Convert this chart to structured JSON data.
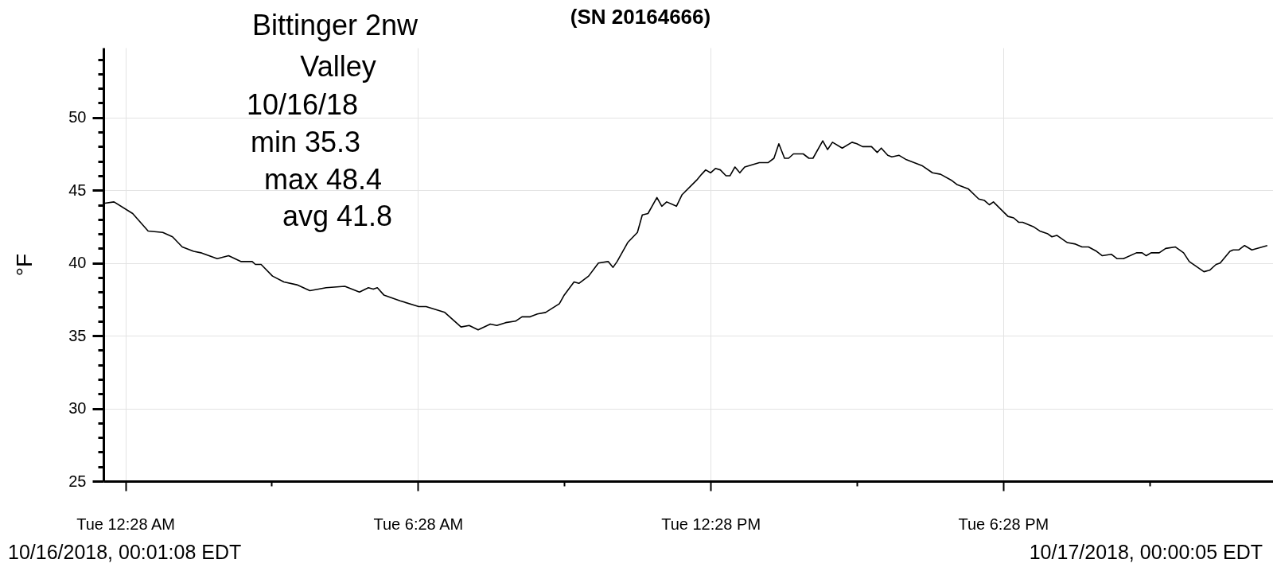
{
  "chart_data": {
    "type": "line",
    "title": "(SN 20164666)",
    "ylabel": "°F",
    "annotations": [
      "Bittinger 2nw",
      "Valley",
      "10/16/18",
      "min 35.3",
      "max 48.4",
      "avg 41.8",
      "10/16/2018, 00:01:08 EDT",
      "10/17/2018, 00:00:05 EDT"
    ],
    "x": [
      "2018-10-16T00:01",
      "2018-10-16T00:14",
      "2018-10-16T00:37",
      "2018-10-16T00:56",
      "2018-10-16T01:14",
      "2018-10-16T01:26",
      "2018-10-16T01:38",
      "2018-10-16T01:52",
      "2018-10-16T02:01",
      "2018-10-16T02:21",
      "2018-10-16T02:35",
      "2018-10-16T02:50",
      "2018-10-16T03:04",
      "2018-10-16T03:08",
      "2018-10-16T03:15",
      "2018-10-16T03:29",
      "2018-10-16T03:43",
      "2018-10-16T03:59",
      "2018-10-16T04:15",
      "2018-10-16T04:35",
      "2018-10-16T04:58",
      "2018-10-16T05:16",
      "2018-10-16T05:27",
      "2018-10-16T05:33",
      "2018-10-16T05:38",
      "2018-10-16T05:46",
      "2018-10-16T06:06",
      "2018-10-16T06:29",
      "2018-10-16T06:38",
      "2018-10-16T07:01",
      "2018-10-16T07:21",
      "2018-10-16T07:31",
      "2018-10-16T07:42",
      "2018-10-16T07:57",
      "2018-10-16T08:05",
      "2018-10-16T08:16",
      "2018-10-16T08:28",
      "2018-10-16T08:36",
      "2018-10-16T08:46",
      "2018-10-16T08:55",
      "2018-10-16T09:05",
      "2018-10-16T09:22",
      "2018-10-16T09:28",
      "2018-10-16T09:40",
      "2018-10-16T09:46",
      "2018-10-16T09:58",
      "2018-10-16T10:10",
      "2018-10-16T10:22",
      "2018-10-16T10:28",
      "2018-10-16T10:33",
      "2018-10-16T10:46",
      "2018-10-16T10:58",
      "2018-10-16T11:04",
      "2018-10-16T11:11",
      "2018-10-16T11:22",
      "2018-10-16T11:28",
      "2018-10-16T11:34",
      "2018-10-16T11:46",
      "2018-10-16T11:53",
      "2018-10-16T12:11",
      "2018-10-16T12:17",
      "2018-10-16T12:22",
      "2018-10-16T12:28",
      "2018-10-16T12:34",
      "2018-10-16T12:40",
      "2018-10-16T12:47",
      "2018-10-16T12:52",
      "2018-10-16T12:58",
      "2018-10-16T13:04",
      "2018-10-16T13:10",
      "2018-10-16T13:28",
      "2018-10-16T13:39",
      "2018-10-16T13:46",
      "2018-10-16T13:52",
      "2018-10-16T13:59",
      "2018-10-16T14:04",
      "2018-10-16T14:10",
      "2018-10-16T14:22",
      "2018-10-16T14:29",
      "2018-10-16T14:34",
      "2018-10-16T14:46",
      "2018-10-16T14:52",
      "2018-10-16T14:58",
      "2018-10-16T15:10",
      "2018-10-16T15:22",
      "2018-10-16T15:28",
      "2018-10-16T15:35",
      "2018-10-16T15:46",
      "2018-10-16T15:53",
      "2018-10-16T15:58",
      "2018-10-16T16:06",
      "2018-10-16T16:11",
      "2018-10-16T16:20",
      "2018-10-16T16:29",
      "2018-10-16T16:48",
      "2018-10-16T17:01",
      "2018-10-16T17:11",
      "2018-10-16T17:24",
      "2018-10-16T17:31",
      "2018-10-16T17:45",
      "2018-10-16T17:58",
      "2018-10-16T18:05",
      "2018-10-16T18:11",
      "2018-10-16T18:16",
      "2018-10-16T18:34",
      "2018-10-16T18:41",
      "2018-10-16T18:47",
      "2018-10-16T18:52",
      "2018-10-16T19:05",
      "2018-10-16T19:13",
      "2018-10-16T19:23",
      "2018-10-16T19:28",
      "2018-10-16T19:34",
      "2018-10-16T19:47",
      "2018-10-16T19:57",
      "2018-10-16T20:05",
      "2018-10-16T20:13",
      "2018-10-16T20:23",
      "2018-10-16T20:30",
      "2018-10-16T20:41",
      "2018-10-16T20:48",
      "2018-10-16T20:56",
      "2018-10-16T21:12",
      "2018-10-16T21:19",
      "2018-10-16T21:24",
      "2018-10-16T21:30",
      "2018-10-16T21:40",
      "2018-10-16T21:48",
      "2018-10-16T22:00",
      "2018-10-16T22:10",
      "2018-10-16T22:17",
      "2018-10-16T22:35",
      "2018-10-16T22:42",
      "2018-10-16T22:50",
      "2018-10-16T22:55",
      "2018-10-16T23:07",
      "2018-10-16T23:11",
      "2018-10-16T23:18",
      "2018-10-16T23:25",
      "2018-10-16T23:34",
      "2018-10-16T23:53"
    ],
    "series": [
      {
        "color": "#000000",
        "values": [
          44.1,
          44.2,
          43.4,
          42.2,
          42.1,
          41.8,
          41.1,
          40.8,
          40.7,
          40.3,
          40.5,
          40.1,
          40.1,
          39.9,
          39.9,
          39.1,
          38.7,
          38.5,
          38.1,
          38.3,
          38.4,
          38.0,
          38.3,
          38.2,
          38.3,
          37.8,
          37.4,
          37.0,
          37.0,
          36.6,
          35.6,
          35.7,
          35.4,
          35.8,
          35.7,
          35.9,
          36.0,
          36.3,
          36.3,
          36.5,
          36.6,
          37.2,
          37.8,
          38.7,
          38.6,
          39.1,
          40.0,
          40.1,
          39.7,
          40.1,
          41.4,
          42.1,
          43.3,
          43.4,
          44.5,
          43.9,
          44.2,
          43.9,
          44.7,
          45.7,
          46.1,
          46.4,
          46.2,
          46.5,
          46.4,
          46.0,
          46.0,
          46.6,
          46.2,
          46.6,
          46.9,
          46.9,
          47.2,
          48.2,
          47.2,
          47.2,
          47.5,
          47.5,
          47.2,
          47.2,
          48.4,
          47.8,
          48.3,
          47.9,
          48.3,
          48.2,
          48.0,
          48.0,
          47.6,
          47.9,
          47.4,
          47.3,
          47.4,
          47.1,
          46.7,
          46.2,
          46.1,
          45.7,
          45.4,
          45.1,
          44.4,
          44.3,
          44.0,
          44.2,
          43.2,
          43.1,
          42.8,
          42.8,
          42.5,
          42.2,
          42.0,
          41.8,
          41.9,
          41.4,
          41.3,
          41.1,
          41.1,
          40.8,
          40.5,
          40.6,
          40.3,
          40.3,
          40.7,
          40.7,
          40.5,
          40.7,
          40.7,
          41.0,
          41.1,
          40.7,
          40.1,
          39.4,
          39.5,
          39.9,
          40.0,
          40.8,
          40.9,
          40.9,
          41.2,
          40.9,
          41.2
        ]
      }
    ],
    "xlim": [
      "2018-10-16T00:01",
      "2018-10-17T00:00"
    ],
    "xticks": [
      {
        "value": "2018-10-16T00:28",
        "label": "Tue 12:28 AM"
      },
      {
        "value": "2018-10-16T03:28",
        "label": null
      },
      {
        "value": "2018-10-16T06:28",
        "label": "Tue 6:28 AM"
      },
      {
        "value": "2018-10-16T09:28",
        "label": null
      },
      {
        "value": "2018-10-16T12:28",
        "label": "Tue 12:28 PM"
      },
      {
        "value": "2018-10-16T15:28",
        "label": null
      },
      {
        "value": "2018-10-16T18:28",
        "label": "Tue 6:28 PM"
      },
      {
        "value": "2018-10-16T21:28",
        "label": null
      }
    ],
    "ylim": [
      25,
      54.8
    ],
    "yticks": [
      25,
      {
        "value": 26,
        "label": null
      },
      {
        "value": 27,
        "label": null
      },
      {
        "value": 28,
        "label": null
      },
      {
        "value": 29,
        "label": null
      },
      30,
      {
        "value": 31,
        "label": null
      },
      {
        "value": 32,
        "label": null
      },
      {
        "value": 33,
        "label": null
      },
      {
        "value": 34,
        "label": null
      },
      35,
      {
        "value": 36,
        "label": null
      },
      {
        "value": 37,
        "label": null
      },
      {
        "value": 38,
        "label": null
      },
      {
        "value": 39,
        "label": null
      },
      40,
      {
        "value": 41,
        "label": null
      },
      {
        "value": 42,
        "label": null
      },
      {
        "value": 43,
        "label": null
      },
      {
        "value": 44,
        "label": null
      },
      45,
      {
        "value": 46,
        "label": null
      },
      {
        "value": 47,
        "label": null
      },
      {
        "value": 48,
        "label": null
      },
      {
        "value": 49,
        "label": null
      },
      50,
      {
        "value": 51,
        "label": null
      },
      {
        "value": 52,
        "label": null
      },
      {
        "value": 53,
        "label": null
      },
      {
        "value": 54,
        "label": null
      }
    ],
    "grid": true
  }
}
